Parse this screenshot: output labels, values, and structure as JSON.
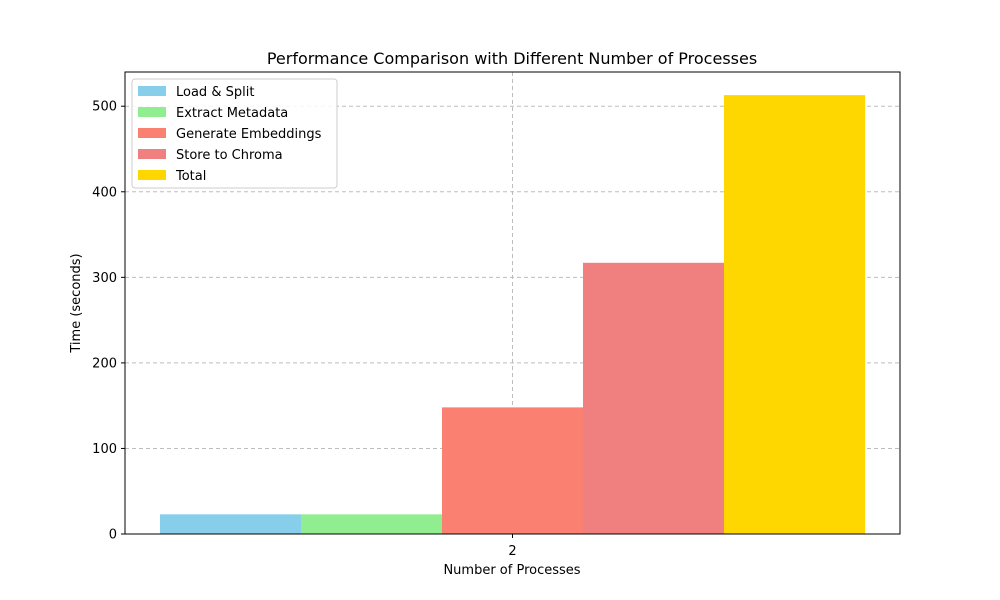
{
  "chart_data": {
    "type": "bar",
    "title": "Performance Comparison with Different Number of Processes",
    "xlabel": "Number of Processes",
    "ylabel": "Time (seconds)",
    "categories": [
      "2"
    ],
    "ylim": [
      0,
      540
    ],
    "yticks": [
      0,
      100,
      200,
      300,
      400,
      500
    ],
    "grid": true,
    "legend_position": "top-left",
    "series": [
      {
        "name": "Load & Split",
        "color": "#87CEEB",
        "values": [
          23
        ]
      },
      {
        "name": "Extract Metadata",
        "color": "#90EE90",
        "values": [
          23
        ]
      },
      {
        "name": "Generate Embeddings",
        "color": "#FA8072",
        "values": [
          148
        ]
      },
      {
        "name": "Store to Chroma",
        "color": "#F08080",
        "values": [
          317
        ]
      },
      {
        "name": "Total",
        "color": "#FFD700",
        "values": [
          513
        ]
      }
    ]
  }
}
